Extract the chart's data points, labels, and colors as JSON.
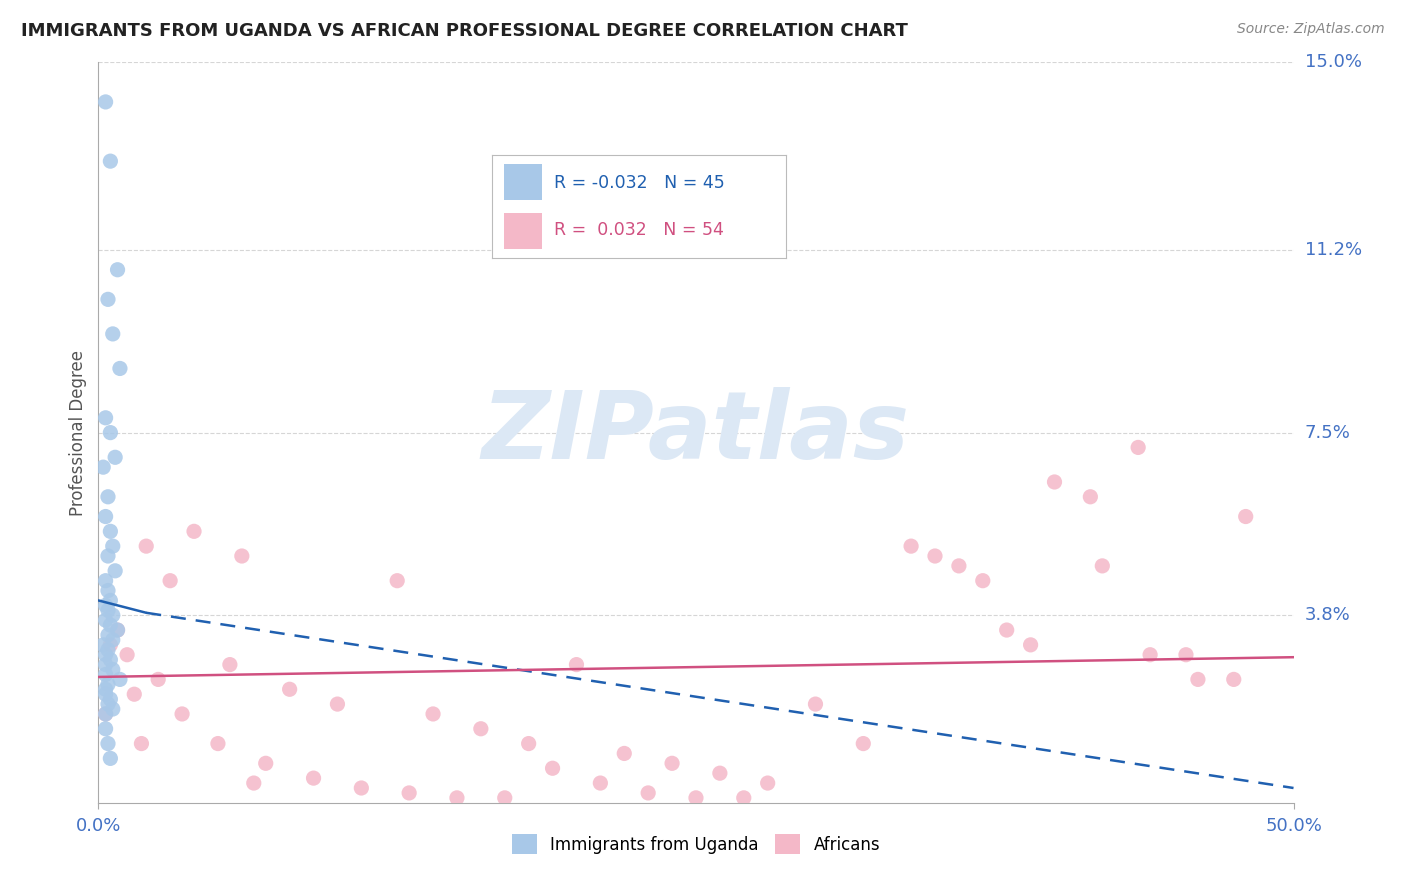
{
  "title": "IMMIGRANTS FROM UGANDA VS AFRICAN PROFESSIONAL DEGREE CORRELATION CHART",
  "source": "Source: ZipAtlas.com",
  "ylabel": "Professional Degree",
  "xlim": [
    0.0,
    50.0
  ],
  "ylim": [
    0.0,
    15.0
  ],
  "xtick_positions": [
    0.0,
    50.0
  ],
  "xtick_labels": [
    "0.0%",
    "50.0%"
  ],
  "ytick_values": [
    3.8,
    7.5,
    11.2,
    15.0
  ],
  "ytick_labels": [
    "3.8%",
    "7.5%",
    "11.2%",
    "15.0%"
  ],
  "blue_R": -0.032,
  "blue_N": 45,
  "pink_R": 0.032,
  "pink_N": 54,
  "legend_label_blue": "Immigrants from Uganda",
  "legend_label_pink": "Africans",
  "blue_color": "#a8c8e8",
  "pink_color": "#f4b8c8",
  "blue_line_color": "#2060b0",
  "pink_line_color": "#d05080",
  "watermark_text": "ZIPatlas",
  "watermark_color": "#dce8f5",
  "background_color": "#ffffff",
  "title_color": "#222222",
  "source_color": "#888888",
  "axis_label_color": "#555555",
  "tick_label_color": "#4472c4",
  "grid_color": "#cccccc",
  "blue_line_x0": 0.0,
  "blue_line_y0": 4.1,
  "blue_line_x1_solid": 2.0,
  "blue_line_y1_solid": 3.85,
  "blue_line_x1_dashed": 50.0,
  "blue_line_y1_dashed": 0.3,
  "pink_line_x0": 0.0,
  "pink_line_y0": 2.55,
  "pink_line_x1": 50.0,
  "pink_line_y1": 2.95,
  "blue_scatter_x": [
    0.3,
    0.5,
    0.8,
    0.4,
    0.6,
    0.9,
    0.3,
    0.5,
    0.7,
    0.2,
    0.4,
    0.3,
    0.5,
    0.6,
    0.4,
    0.7,
    0.3,
    0.4,
    0.5,
    0.3,
    0.4,
    0.6,
    0.3,
    0.5,
    0.8,
    0.4,
    0.6,
    0.2,
    0.4,
    0.3,
    0.5,
    0.3,
    0.6,
    0.3,
    0.9,
    0.4,
    0.3,
    0.3,
    0.5,
    0.4,
    0.6,
    0.3,
    0.3,
    0.4,
    0.5
  ],
  "blue_scatter_y": [
    14.2,
    13.0,
    10.8,
    10.2,
    9.5,
    8.8,
    7.8,
    7.5,
    7.0,
    6.8,
    6.2,
    5.8,
    5.5,
    5.2,
    5.0,
    4.7,
    4.5,
    4.3,
    4.1,
    4.0,
    3.9,
    3.8,
    3.7,
    3.6,
    3.5,
    3.4,
    3.3,
    3.2,
    3.1,
    3.0,
    2.9,
    2.8,
    2.7,
    2.6,
    2.5,
    2.4,
    2.3,
    2.2,
    2.1,
    2.0,
    1.9,
    1.8,
    1.5,
    1.2,
    0.9
  ],
  "pink_scatter_x": [
    0.5,
    1.2,
    2.0,
    3.0,
    4.0,
    5.5,
    6.0,
    8.0,
    10.0,
    12.5,
    14.0,
    16.0,
    18.0,
    20.0,
    22.0,
    24.0,
    26.0,
    28.0,
    0.8,
    1.5,
    2.5,
    3.5,
    5.0,
    7.0,
    9.0,
    11.0,
    13.0,
    15.0,
    17.0,
    19.0,
    21.0,
    23.0,
    25.0,
    27.0,
    30.0,
    32.0,
    34.0,
    36.0,
    38.0,
    40.0,
    42.0,
    44.0,
    46.0,
    48.0,
    35.0,
    37.0,
    39.0,
    41.5,
    43.5,
    45.5,
    47.5,
    0.3,
    1.8,
    6.5
  ],
  "pink_scatter_y": [
    3.2,
    3.0,
    5.2,
    4.5,
    5.5,
    2.8,
    5.0,
    2.3,
    2.0,
    4.5,
    1.8,
    1.5,
    1.2,
    2.8,
    1.0,
    0.8,
    0.6,
    0.4,
    3.5,
    2.2,
    2.5,
    1.8,
    1.2,
    0.8,
    0.5,
    0.3,
    0.2,
    0.1,
    0.1,
    0.7,
    0.4,
    0.2,
    0.1,
    0.1,
    2.0,
    1.2,
    5.2,
    4.8,
    3.5,
    6.5,
    4.8,
    3.0,
    2.5,
    5.8,
    5.0,
    4.5,
    3.2,
    6.2,
    7.2,
    3.0,
    2.5,
    1.8,
    1.2,
    0.4
  ]
}
